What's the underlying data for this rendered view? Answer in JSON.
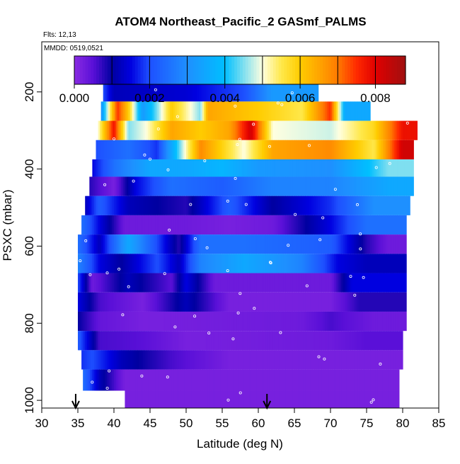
{
  "chart_data": {
    "type": "heatmap",
    "title": "ATOM4 Northeast_Pacific_2 GASmf_PALMS",
    "flights_label": "Flts: 12,13",
    "dates_label": "MMDD: 0519,0521",
    "xlabel": "Latitude (deg N)",
    "ylabel": "PSXC (mbar)",
    "xlim": [
      30,
      85
    ],
    "ylim": [
      1020,
      70
    ],
    "y_reversed": true,
    "xticks": [
      30,
      35,
      40,
      45,
      50,
      55,
      60,
      65,
      70,
      75,
      80,
      85
    ],
    "yticks": [
      200,
      400,
      600,
      800,
      1000
    ],
    "colorbar": {
      "min": 0.0,
      "max": 0.0088,
      "ticks": [
        0.0,
        0.002,
        0.004,
        0.006,
        0.008
      ],
      "tick_labels": [
        "0.000",
        "0.002",
        "0.004",
        "0.006",
        "0.008"
      ],
      "boundaries": [
        0.001,
        0.002,
        0.003,
        0.004,
        0.005,
        0.006,
        0.007,
        0.008
      ],
      "stops": [
        {
          "v": 0.0,
          "color": "#8a2be2"
        },
        {
          "v": 0.0005,
          "color": "#5a10d8"
        },
        {
          "v": 0.001,
          "color": "#0000a0"
        },
        {
          "v": 0.0015,
          "color": "#0000e0"
        },
        {
          "v": 0.002,
          "color": "#1e50ff"
        },
        {
          "v": 0.003,
          "color": "#1e90ff"
        },
        {
          "v": 0.004,
          "color": "#00bfff"
        },
        {
          "v": 0.005,
          "color": "#ffffe0"
        },
        {
          "v": 0.0055,
          "color": "#ffe84a"
        },
        {
          "v": 0.006,
          "color": "#ffcc00"
        },
        {
          "v": 0.0065,
          "color": "#ffa500"
        },
        {
          "v": 0.007,
          "color": "#ff7a00"
        },
        {
          "v": 0.0075,
          "color": "#ff2a00"
        },
        {
          "v": 0.008,
          "color": "#e00000"
        },
        {
          "v": 0.0088,
          "color": "#a01010"
        }
      ]
    },
    "arrows_latitude": [
      34.7,
      61.2
    ],
    "bands": [
      {
        "p_top": 170,
        "p_bot": 225,
        "segments": [
          [
            38.5,
            0.002
          ],
          [
            40.0,
            0.0012
          ],
          [
            50,
            0.0014
          ],
          [
            58,
            0.002
          ],
          [
            62,
            0.0032
          ],
          [
            68.3,
            0.0032
          ]
        ]
      },
      {
        "p_top": 225,
        "p_bot": 275,
        "segments": [
          [
            38.2,
            0.003
          ],
          [
            40.5,
            0.0075
          ],
          [
            42,
            0.006
          ],
          [
            44,
            0.0032
          ],
          [
            46,
            0.0045
          ],
          [
            48,
            0.006
          ],
          [
            52,
            0.0045
          ],
          [
            53,
            0.0065
          ],
          [
            60,
            0.006
          ],
          [
            66,
            0.0055
          ],
          [
            70,
            0.0075
          ],
          [
            72,
            0.0035
          ],
          [
            75.5,
            0.0035
          ]
        ]
      },
      {
        "p_top": 275,
        "p_bot": 325,
        "segments": [
          [
            37.8,
            0.005
          ],
          [
            40,
            0.0078
          ],
          [
            42,
            0.0045
          ],
          [
            44.5,
            0.005
          ],
          [
            48,
            0.0065
          ],
          [
            52,
            0.006
          ],
          [
            56,
            0.0065
          ],
          [
            59,
            0.0082
          ],
          [
            62,
            0.005
          ],
          [
            70,
            0.0048
          ],
          [
            76,
            0.0058
          ],
          [
            80,
            0.0078
          ],
          [
            82,
            0.0078
          ]
        ]
      },
      {
        "p_top": 325,
        "p_bot": 375,
        "segments": [
          [
            37.5,
            0.002
          ],
          [
            42,
            0.0025
          ],
          [
            46,
            0.0018
          ],
          [
            48,
            0.0035
          ],
          [
            52,
            0.0068
          ],
          [
            58,
            0.005
          ],
          [
            62,
            0.0065
          ],
          [
            70,
            0.0068
          ],
          [
            76,
            0.0055
          ],
          [
            80,
            0.0082
          ],
          [
            81.5,
            0.0082
          ]
        ]
      },
      {
        "p_top": 375,
        "p_bot": 420,
        "segments": [
          [
            37,
            0.0015
          ],
          [
            40,
            0.0025
          ],
          [
            45,
            0.0035
          ],
          [
            50,
            0.0035
          ],
          [
            55,
            0.0038
          ],
          [
            60,
            0.0032
          ],
          [
            70,
            0.003
          ],
          [
            78,
            0.0045
          ],
          [
            81.5,
            0.0045
          ]
        ]
      },
      {
        "p_top": 420,
        "p_bot": 470,
        "segments": [
          [
            36.6,
            0.0008
          ],
          [
            40,
            0.0002
          ],
          [
            43,
            0.0015
          ],
          [
            48,
            0.0025
          ],
          [
            55,
            0.0022
          ],
          [
            62,
            0.0028
          ],
          [
            70,
            0.0028
          ],
          [
            78,
            0.0035
          ],
          [
            81.5,
            0.0035
          ]
        ]
      },
      {
        "p_top": 470,
        "p_bot": 520,
        "segments": [
          [
            36,
            0.0012
          ],
          [
            38,
            0.0022
          ],
          [
            42,
            0.0012
          ],
          [
            50,
            0.0008
          ],
          [
            56,
            0.0022
          ],
          [
            62,
            0.001
          ],
          [
            70,
            0.0018
          ],
          [
            76,
            0.003
          ],
          [
            81,
            0.003
          ]
        ]
      },
      {
        "p_top": 520,
        "p_bot": 570,
        "segments": [
          [
            35.5,
            0.0025
          ],
          [
            38,
            0.0015
          ],
          [
            41.5,
            0.0003
          ],
          [
            50,
            0.0003
          ],
          [
            56,
            0.0002
          ],
          [
            62,
            0.0003
          ],
          [
            70,
            0.0015
          ],
          [
            75,
            0.0025
          ],
          [
            80.5,
            0.0025
          ]
        ]
      },
      {
        "p_top": 570,
        "p_bot": 620,
        "segments": [
          [
            35,
            0.0025
          ],
          [
            38,
            0.0012
          ],
          [
            42,
            0.0035
          ],
          [
            49,
            0.0008
          ],
          [
            52,
            0.0025
          ],
          [
            58,
            0.0025
          ],
          [
            70,
            0.0022
          ],
          [
            75,
            0.0008
          ],
          [
            78,
            0.0003
          ],
          [
            80.5,
            0.0003
          ]
        ]
      },
      {
        "p_top": 620,
        "p_bot": 670,
        "segments": [
          [
            35,
            0.0028
          ],
          [
            38,
            0.0015
          ],
          [
            41,
            0.001
          ],
          [
            46,
            0.002
          ],
          [
            49,
            0.0012
          ],
          [
            52,
            0.0028
          ],
          [
            58,
            0.0035
          ],
          [
            66,
            0.0028
          ],
          [
            71,
            0.0015
          ],
          [
            75,
            0.0012
          ],
          [
            80.5,
            0.0012
          ]
        ]
      },
      {
        "p_top": 670,
        "p_bot": 720,
        "segments": [
          [
            35,
            0.002
          ],
          [
            37,
            0.0003
          ],
          [
            42,
            0.0012
          ],
          [
            48,
            0.0005
          ],
          [
            50,
            0.0015
          ],
          [
            54,
            0.0003
          ],
          [
            70,
            0.0003
          ],
          [
            73,
            0.0015
          ],
          [
            80.5,
            0.0015
          ]
        ]
      },
      {
        "p_top": 720,
        "p_bot": 770,
        "segments": [
          [
            35,
            0.0015
          ],
          [
            38,
            0.0006
          ],
          [
            44,
            0.0002
          ],
          [
            50,
            0.0012
          ],
          [
            56,
            0.0002
          ],
          [
            70,
            0.0002
          ],
          [
            74,
            0.0008
          ],
          [
            80.5,
            0.0008
          ]
        ]
      },
      {
        "p_top": 770,
        "p_bot": 820,
        "segments": [
          [
            35,
            0.001
          ],
          [
            38,
            0.0004
          ],
          [
            44,
            0.0002
          ],
          [
            66,
            0.0003
          ],
          [
            70,
            0.0006
          ],
          [
            76,
            0.0003
          ],
          [
            80.5,
            0.0003
          ]
        ]
      },
      {
        "p_top": 820,
        "p_bot": 870,
        "segments": [
          [
            35,
            0.0022
          ],
          [
            38,
            0.0006
          ],
          [
            44,
            0.0005
          ],
          [
            50,
            0.0002
          ],
          [
            70,
            0.0003
          ],
          [
            75,
            0.0005
          ],
          [
            80,
            0.0005
          ]
        ]
      },
      {
        "p_top": 870,
        "p_bot": 920,
        "segments": [
          [
            35.5,
            0.0018
          ],
          [
            37,
            0.002
          ],
          [
            41,
            0.0012
          ],
          [
            48,
            0.0006
          ],
          [
            56,
            0.0002
          ],
          [
            80,
            0.0002
          ]
        ]
      },
      {
        "p_top": 920,
        "p_bot": 975,
        "segments": [
          [
            35.7,
            0.0025
          ],
          [
            38,
            0.0012
          ],
          [
            41.5,
            0.0002
          ],
          [
            79.5,
            0.0002
          ]
        ]
      },
      {
        "p_top": 975,
        "p_bot": 1020,
        "segments": [
          [
            41.5,
            0.0002
          ],
          [
            79.5,
            0.0002
          ]
        ]
      }
    ]
  }
}
